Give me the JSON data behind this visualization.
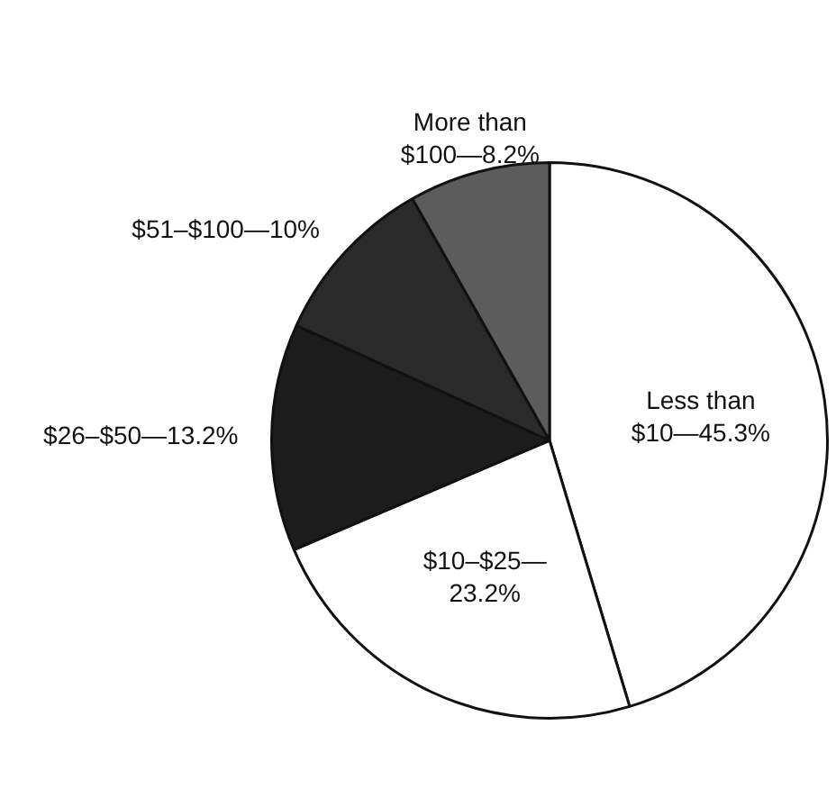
{
  "chart_data": {
    "type": "pie",
    "categories": [
      "Less than $10—",
      "$10–$25—",
      "$26–$50—",
      "$51–$100—",
      "More than $100—"
    ],
    "values": [
      45.3,
      23.2,
      13.2,
      10,
      8.2
    ],
    "value_labels": [
      "45.3%",
      "23.2%",
      "13.2%",
      "10%",
      "8.2%"
    ],
    "colors": [
      "#ffffff",
      "#ffffff",
      "#1c1c1c",
      "#2a2a2a",
      "#5c5c5c"
    ],
    "data_labels": true,
    "legend": false
  }
}
